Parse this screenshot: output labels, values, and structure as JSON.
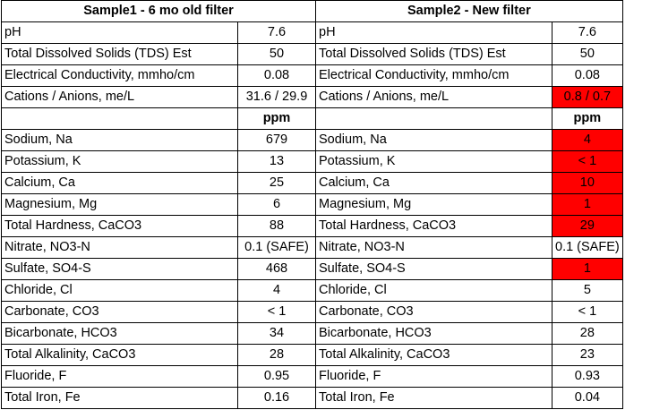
{
  "headers": {
    "sample1": "Sample1 - 6 mo old filter",
    "sample2": "Sample2 - New filter"
  },
  "colors": {
    "flag": "#ff0000",
    "grid": "#000000"
  },
  "rows": [
    {
      "label": "pH",
      "s1": "7.6",
      "s2": "7.6",
      "s2_flag": false
    },
    {
      "label": "Total Dissolved Solids (TDS) Est",
      "s1": "50",
      "s2": "50",
      "s2_flag": false
    },
    {
      "label": "Electrical Conductivity, mmho/cm",
      "s1": "0.08",
      "s2": "0.08",
      "s2_flag": false
    },
    {
      "label": "Cations / Anions, me/L",
      "s1": "31.6 / 29.9",
      "s2": "0.8 / 0.7",
      "s2_flag": true
    },
    {
      "label": "",
      "s1": "ppm",
      "s2": "ppm",
      "unit_row": true,
      "s2_flag": false
    },
    {
      "label": "Sodium, Na",
      "s1": "679",
      "s2": "4",
      "s2_flag": true
    },
    {
      "label": "Potassium, K",
      "s1": "13",
      "s2": "< 1",
      "s2_flag": true
    },
    {
      "label": "Calcium, Ca",
      "s1": "25",
      "s2": "10",
      "s2_flag": true
    },
    {
      "label": "Magnesium, Mg",
      "s1": "6",
      "s2": "1",
      "s2_flag": true
    },
    {
      "label": "Total Hardness, CaCO3",
      "s1": "88",
      "s2": "29",
      "s2_flag": true
    },
    {
      "label": "Nitrate, NO3-N",
      "s1": "0.1 (SAFE)",
      "s2": "0.1 (SAFE)",
      "s2_flag": false
    },
    {
      "label": "Sulfate, SO4-S",
      "s1": "468",
      "s2": "1",
      "s2_flag": true
    },
    {
      "label": "Chloride, Cl",
      "s1": "4",
      "s2": "5",
      "s2_flag": false
    },
    {
      "label": "Carbonate, CO3",
      "s1": "< 1",
      "s2": "< 1",
      "s2_flag": false
    },
    {
      "label": "Bicarbonate, HCO3",
      "s1": "34",
      "s2": "28",
      "s2_flag": false
    },
    {
      "label": "Total Alkalinity, CaCO3",
      "s1": "28",
      "s2": "23",
      "s2_flag": false
    },
    {
      "label": "Fluoride, F",
      "s1": "0.95",
      "s2": "0.93",
      "s2_flag": false
    },
    {
      "label": "Total Iron, Fe",
      "s1": "0.16",
      "s2": "0.04",
      "s2_flag": false
    }
  ]
}
